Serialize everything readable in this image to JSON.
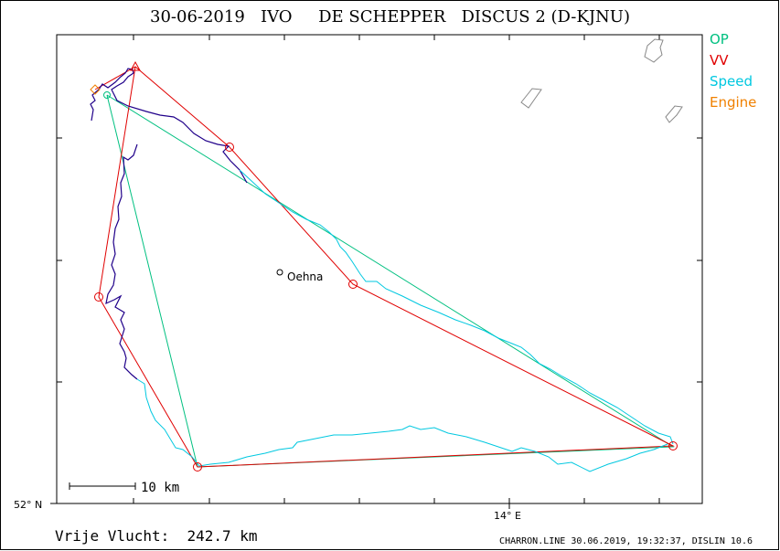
{
  "title": {
    "date": "30-06-2019",
    "club": "IVO",
    "pilot": "DE SCHEPPER",
    "glider": "DISCUS 2 (D-KJNU)"
  },
  "legend": {
    "op": {
      "label": "OP",
      "color": "#00c080"
    },
    "vv": {
      "label": "VV",
      "color": "#e00000"
    },
    "speed": {
      "label": "Speed",
      "color": "#00c8e0"
    },
    "engine": {
      "label": "Engine",
      "color": "#f08000"
    }
  },
  "colors": {
    "track": "#20008a",
    "speed_track": "#00c8e0"
  },
  "place": {
    "name": "Oehna"
  },
  "scale": {
    "label": "10 km"
  },
  "axes": {
    "lat_label": "52° N",
    "lon_label": "14° E"
  },
  "distance": {
    "label": "Vrije Vlucht:",
    "value": "242.7 km"
  },
  "footer": {
    "text": "CHARRON.LINE 30.06.2019, 19:32:37, DISLIN 10.6"
  }
}
